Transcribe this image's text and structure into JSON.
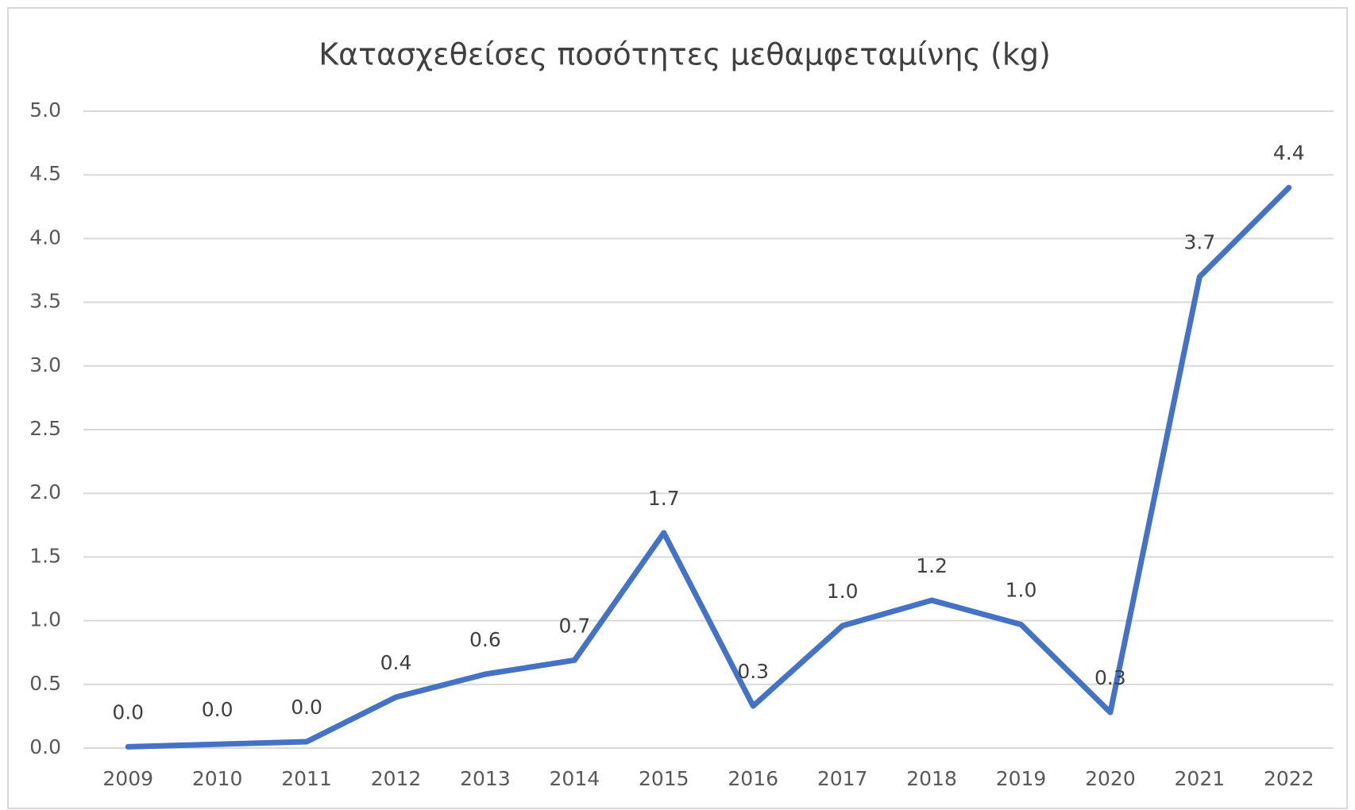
{
  "chart_data": {
    "type": "line",
    "title": "Κατασχεθείσες ποσότητες μεθαμφεταμίνης (kg)",
    "categories": [
      "2009",
      "2010",
      "2011",
      "2012",
      "2013",
      "2014",
      "2015",
      "2016",
      "2017",
      "2018",
      "2019",
      "2020",
      "2021",
      "2022"
    ],
    "series": [
      {
        "name": "Κατασχεθείσες ποσότητες μεθαμφεταμίνης (kg)",
        "color": "#4472c4",
        "values": [
          0.01,
          0.03,
          0.05,
          0.4,
          0.58,
          0.69,
          1.69,
          0.33,
          0.96,
          1.16,
          0.97,
          0.28,
          3.7,
          4.4
        ],
        "value_labels": [
          "0.0",
          "0.0",
          "0.0",
          "0.4",
          "0.6",
          "0.7",
          "1.7",
          "0.3",
          "1.0",
          "1.2",
          "1.0",
          "0.3",
          "3.7",
          "4.4"
        ]
      }
    ],
    "ylim": [
      0,
      5
    ],
    "yticks": [
      {
        "value": 0,
        "label": "0.0"
      },
      0.5,
      {
        "value": 1,
        "label": "1.0"
      },
      1.5,
      {
        "value": 2,
        "label": "2.0"
      },
      2.5,
      {
        "value": 3,
        "label": "3.0"
      },
      3.5,
      {
        "value": 4,
        "label": "4.0"
      },
      4.5,
      {
        "value": 5,
        "label": "5.0"
      }
    ],
    "grid": true
  }
}
